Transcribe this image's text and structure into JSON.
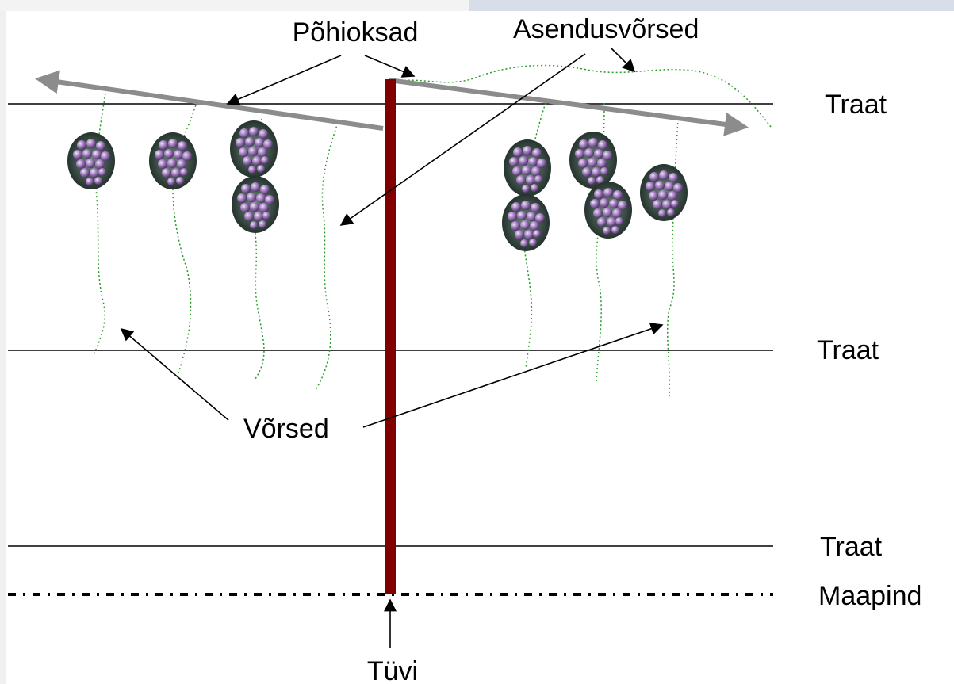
{
  "labels": {
    "main_arms": "Põhioksad",
    "replacement_shoots": "Asendusvõrsed",
    "wire_top": "Traat",
    "wire_middle": "Traat",
    "wire_bottom": "Traat",
    "ground": "Maapind",
    "shoots": "Võrsed",
    "trunk": "Tüvi"
  },
  "colors": {
    "trunk": "#800000",
    "arm": "#8c8c8c",
    "shoot": "#2a9a2a",
    "wire": "#000000",
    "grape": "#8a6aa8",
    "corner_band": "#d7dee8"
  },
  "icons": {
    "grape_cluster": "grape-cluster-icon"
  }
}
